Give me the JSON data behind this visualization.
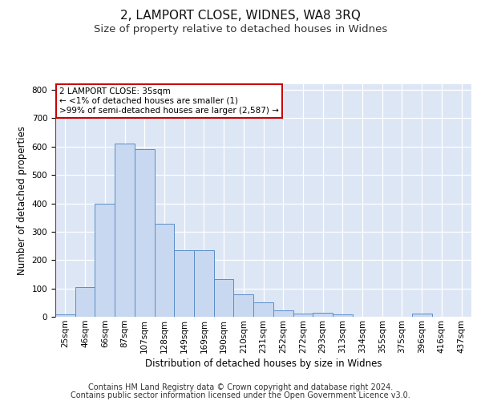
{
  "title1": "2, LAMPORT CLOSE, WIDNES, WA8 3RQ",
  "title2": "Size of property relative to detached houses in Widnes",
  "xlabel": "Distribution of detached houses by size in Widnes",
  "ylabel": "Number of detached properties",
  "bin_labels": [
    "25sqm",
    "46sqm",
    "66sqm",
    "87sqm",
    "107sqm",
    "128sqm",
    "149sqm",
    "169sqm",
    "190sqm",
    "210sqm",
    "231sqm",
    "252sqm",
    "272sqm",
    "293sqm",
    "313sqm",
    "334sqm",
    "355sqm",
    "375sqm",
    "396sqm",
    "416sqm",
    "437sqm"
  ],
  "bar_heights": [
    8,
    105,
    400,
    612,
    590,
    328,
    235,
    235,
    133,
    78,
    52,
    22,
    12,
    15,
    8,
    0,
    0,
    0,
    10,
    0,
    0
  ],
  "bar_color": "#c8d8f0",
  "bar_edge_color": "#5b8dc8",
  "annotation_title": "2 LAMPORT CLOSE: 35sqm",
  "annotation_line1": "← <1% of detached houses are smaller (1)",
  "annotation_line2": ">99% of semi-detached houses are larger (2,587) →",
  "annotation_box_color": "#ffffff",
  "annotation_box_edge": "#cc0000",
  "ylim": [
    0,
    820
  ],
  "yticks": [
    0,
    100,
    200,
    300,
    400,
    500,
    600,
    700,
    800
  ],
  "footnote1": "Contains HM Land Registry data © Crown copyright and database right 2024.",
  "footnote2": "Contains public sector information licensed under the Open Government Licence v3.0.",
  "background_color": "#dde6f5",
  "grid_color": "#ffffff",
  "title_fontsize": 11,
  "subtitle_fontsize": 9.5,
  "axis_label_fontsize": 8.5,
  "tick_fontsize": 7.5,
  "footnote_fontsize": 7
}
